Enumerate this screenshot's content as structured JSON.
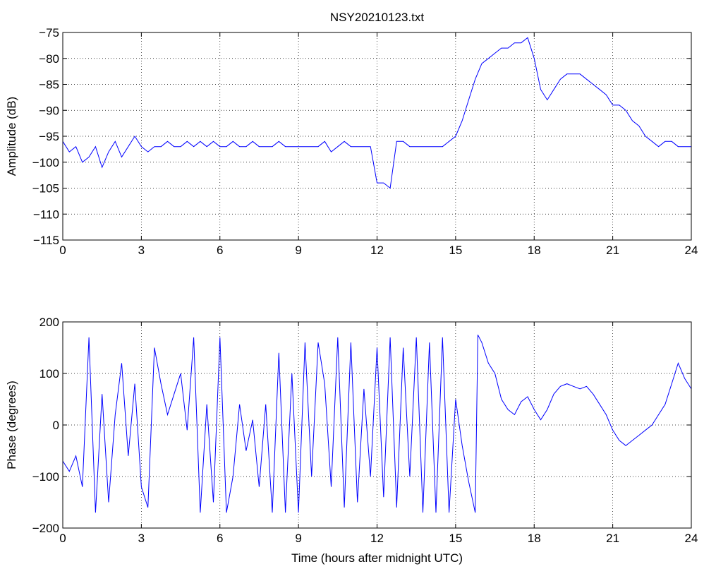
{
  "colors": {
    "series": "#0000ff",
    "axes": "#000000",
    "grid": "#000000",
    "background": "#ffffff"
  },
  "chart_data": [
    {
      "type": "line",
      "title": "NSY20210123.txt",
      "xlabel": "",
      "ylabel": "Amplitude (dB)",
      "xlim": [
        0,
        24
      ],
      "ylim": [
        -115,
        -75
      ],
      "xticks": [
        0,
        3,
        6,
        9,
        12,
        15,
        18,
        21,
        24
      ],
      "yticks": [
        -75,
        -80,
        -85,
        -90,
        -95,
        -100,
        -105,
        -110,
        -115
      ],
      "ytick_labels": [
        "−75",
        "−80",
        "−85",
        "−90",
        "−95",
        "−100",
        "−105",
        "−110",
        "−115"
      ],
      "grid": true,
      "series": [
        {
          "color": "#0000ff",
          "x": [
            0,
            0.25,
            0.5,
            0.75,
            1.0,
            1.25,
            1.5,
            1.75,
            2.0,
            2.25,
            2.5,
            2.75,
            3.0,
            3.25,
            3.5,
            3.75,
            4.0,
            4.25,
            4.5,
            4.75,
            5.0,
            5.25,
            5.5,
            5.75,
            6.0,
            6.25,
            6.5,
            6.75,
            7.0,
            7.25,
            7.5,
            7.75,
            8.0,
            8.25,
            8.5,
            8.75,
            9.0,
            9.25,
            9.5,
            9.75,
            10.0,
            10.25,
            10.5,
            10.75,
            11.0,
            11.25,
            11.5,
            11.75,
            12.0,
            12.25,
            12.5,
            12.75,
            13.0,
            13.25,
            13.5,
            13.75,
            14.0,
            14.25,
            14.5,
            14.75,
            15.0,
            15.25,
            15.5,
            15.75,
            16.0,
            16.25,
            16.5,
            16.75,
            17.0,
            17.25,
            17.5,
            17.75,
            18.0,
            18.25,
            18.5,
            18.75,
            19.0,
            19.25,
            19.5,
            19.75,
            20.0,
            20.25,
            20.5,
            20.75,
            21.0,
            21.25,
            21.5,
            21.75,
            22.0,
            22.25,
            22.5,
            22.75,
            23.0,
            23.25,
            23.5,
            23.75,
            24.0
          ],
          "y": [
            -96,
            -98,
            -97,
            -100,
            -99,
            -97,
            -101,
            -98,
            -96,
            -99,
            -97,
            -95,
            -97,
            -98,
            -97,
            -97,
            -96,
            -97,
            -97,
            -96,
            -97,
            -96,
            -97,
            -96,
            -97,
            -97,
            -96,
            -97,
            -97,
            -96,
            -97,
            -97,
            -97,
            -96,
            -97,
            -97,
            -97,
            -97,
            -97,
            -97,
            -96,
            -98,
            -97,
            -96,
            -97,
            -97,
            -97,
            -97,
            -104,
            -104,
            -105,
            -96,
            -96,
            -97,
            -97,
            -97,
            -97,
            -97,
            -97,
            -96,
            -95,
            -92,
            -88,
            -84,
            -81,
            -80,
            -79,
            -78,
            -78,
            -77,
            -77,
            -76,
            -80,
            -86,
            -88,
            -86,
            -84,
            -83,
            -83,
            -83,
            -84,
            -85,
            -86,
            -87,
            -89,
            -89,
            -90,
            -92,
            -93,
            -95,
            -96,
            -97,
            -96,
            -96,
            -97,
            -97,
            -97
          ]
        }
      ]
    },
    {
      "type": "line",
      "title": "",
      "xlabel": "Time (hours after midnight UTC)",
      "ylabel": "Phase (degrees)",
      "xlim": [
        0,
        24
      ],
      "ylim": [
        -200,
        200
      ],
      "xticks": [
        0,
        3,
        6,
        9,
        12,
        15,
        18,
        21,
        24
      ],
      "yticks": [
        200,
        100,
        0,
        -100,
        -200
      ],
      "ytick_labels": [
        "200",
        "100",
        "0",
        "−100",
        "−200"
      ],
      "grid": true,
      "series": [
        {
          "color": "#0000ff",
          "x": [
            0,
            0.25,
            0.5,
            0.75,
            1.0,
            1.25,
            1.5,
            1.75,
            2.0,
            2.25,
            2.5,
            2.75,
            3.0,
            3.25,
            3.5,
            3.75,
            4.0,
            4.25,
            4.5,
            4.75,
            5.0,
            5.25,
            5.5,
            5.75,
            6.0,
            6.25,
            6.5,
            6.75,
            7.0,
            7.25,
            7.5,
            7.75,
            8.0,
            8.25,
            8.5,
            8.75,
            9.0,
            9.25,
            9.5,
            9.75,
            10.0,
            10.25,
            10.5,
            10.75,
            11.0,
            11.25,
            11.5,
            11.75,
            12.0,
            12.25,
            12.5,
            12.75,
            13.0,
            13.25,
            13.5,
            13.75,
            14.0,
            14.25,
            14.5,
            14.75,
            15.0,
            15.25,
            15.5,
            15.75,
            15.85,
            16.0,
            16.25,
            16.5,
            16.75,
            17.0,
            17.25,
            17.5,
            17.75,
            18.0,
            18.25,
            18.5,
            18.75,
            19.0,
            19.25,
            19.5,
            19.75,
            20.0,
            20.25,
            20.5,
            20.75,
            21.0,
            21.25,
            21.5,
            21.75,
            22.0,
            22.25,
            22.5,
            22.75,
            23.0,
            23.25,
            23.5,
            23.75,
            24.0
          ],
          "y": [
            -70,
            -90,
            -60,
            -120,
            170,
            -170,
            60,
            -150,
            20,
            120,
            -60,
            80,
            -120,
            -160,
            150,
            80,
            20,
            60,
            100,
            -10,
            170,
            -170,
            40,
            -150,
            170,
            -170,
            -100,
            40,
            -50,
            10,
            -120,
            40,
            -170,
            140,
            -170,
            100,
            -170,
            160,
            -100,
            160,
            80,
            -120,
            170,
            -160,
            160,
            -150,
            70,
            -100,
            150,
            -140,
            170,
            -160,
            150,
            -100,
            170,
            -170,
            160,
            -170,
            170,
            -170,
            50,
            -40,
            -110,
            -170,
            175,
            160,
            120,
            100,
            50,
            30,
            20,
            45,
            55,
            30,
            10,
            30,
            60,
            75,
            80,
            75,
            70,
            75,
            60,
            40,
            20,
            -10,
            -30,
            -40,
            -30,
            -20,
            -10,
            0,
            20,
            40,
            80,
            120,
            90,
            70
          ]
        }
      ]
    }
  ]
}
